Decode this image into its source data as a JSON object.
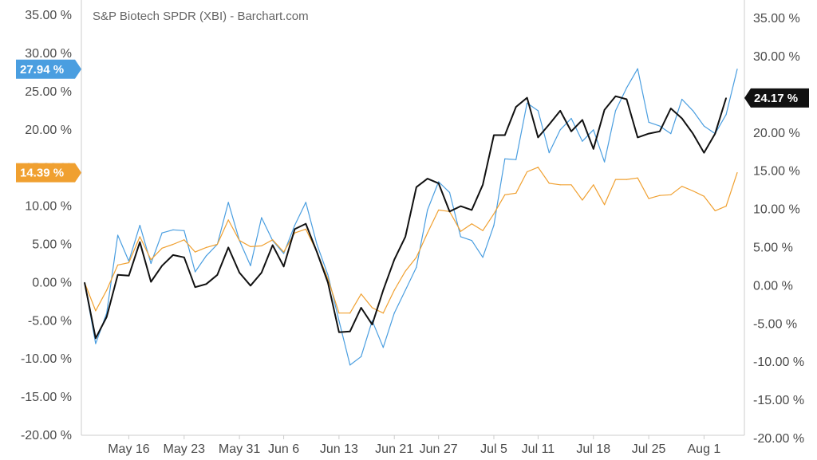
{
  "chart_data": {
    "type": "line",
    "title": "S&P Biotech SPDR (XBI) - Barchart.com",
    "xlabel": "",
    "ylabel": "",
    "ylim": [
      -20,
      37
    ],
    "grid": false,
    "y_ticks": [
      "35.00 %",
      "30.00 %",
      "25.00 %",
      "20.00 %",
      "15.00 %",
      "10.00 %",
      "5.00 %",
      "0.00 %",
      "-5.00 %",
      "-10.00 %",
      "-15.00 %",
      "-20.00 %"
    ],
    "y_tick_values": [
      35,
      30,
      25,
      20,
      15,
      10,
      5,
      0,
      -5,
      -10,
      -15,
      -20
    ],
    "x_ticks": [
      "May 16",
      "May 23",
      "May 31",
      "Jun 6",
      "Jun 13",
      "Jun 21",
      "Jun 27",
      "Jul 5",
      "Jul 11",
      "Jul 18",
      "Jul 25",
      "Aug 1"
    ],
    "x_tick_index": [
      4,
      9,
      14,
      18,
      23,
      28,
      32,
      37,
      41,
      46,
      51,
      56
    ],
    "series": [
      {
        "color": "#4a9ee0",
        "badge": "27.94 %",
        "badge_side": "left",
        "values": [
          0,
          -8,
          -4,
          6.2,
          2.8,
          7.5,
          2.5,
          6.5,
          6.9,
          6.8,
          1.4,
          3.5,
          5,
          10.5,
          5.5,
          2.2,
          8.5,
          5.5,
          3.8,
          7.5,
          10.5,
          5,
          1,
          -5,
          -10.8,
          -9.7,
          -5,
          -8.5,
          -4,
          -1,
          2,
          9.5,
          13.2,
          11.8,
          6,
          5.5,
          3.3,
          7.5,
          16.2,
          16.1,
          23.5,
          22.5,
          17,
          20,
          21.5,
          18.5,
          20,
          15.8,
          22.5,
          25.5,
          28,
          21,
          20.5,
          19.5,
          24,
          22.5,
          20.5,
          19.5,
          22,
          27.94
        ]
      },
      {
        "color": "#f0a030",
        "badge": "14.39 %",
        "badge_side": "left",
        "values": [
          0,
          -3.7,
          -1,
          2.3,
          2.6,
          6,
          3,
          4.5,
          5,
          5.6,
          4,
          4.6,
          5,
          8.2,
          5.5,
          4.7,
          4.8,
          5.6,
          4,
          6.5,
          7,
          4,
          0.5,
          -4,
          -4,
          -1.5,
          -3.3,
          -4,
          -1,
          1.5,
          3.3,
          6.5,
          9.5,
          9.3,
          6.7,
          7.7,
          6.8,
          9,
          11.5,
          11.7,
          14.5,
          15.1,
          13,
          12.8,
          12.8,
          10.8,
          12.8,
          10.2,
          13.5,
          13.5,
          13.7,
          11,
          11.4,
          11.5,
          12.6,
          12,
          11.3,
          9.4,
          10,
          14.39
        ]
      },
      {
        "color": "#111111",
        "badge": "24.17 %",
        "badge_side": "right",
        "values": [
          0,
          -7.3,
          -4.5,
          1,
          0.9,
          5.3,
          0.1,
          2.2,
          3.6,
          3.3,
          -0.6,
          -0.2,
          1,
          4.6,
          1.3,
          -0.4,
          1.3,
          4.9,
          2.1,
          7,
          7.7,
          4,
          0,
          -6.5,
          -6.4,
          -3.3,
          -5.5,
          -1,
          3,
          6,
          12.5,
          13.6,
          13,
          9.3,
          10,
          9.5,
          12.8,
          19.3,
          19.3,
          23,
          24.2,
          19,
          20.7,
          22.5,
          19.8,
          21.3,
          17.5,
          22.6,
          24.4,
          24,
          19,
          19.5,
          19.8,
          22.8,
          21.5,
          19.5,
          17,
          19.5,
          24.17
        ]
      }
    ]
  }
}
